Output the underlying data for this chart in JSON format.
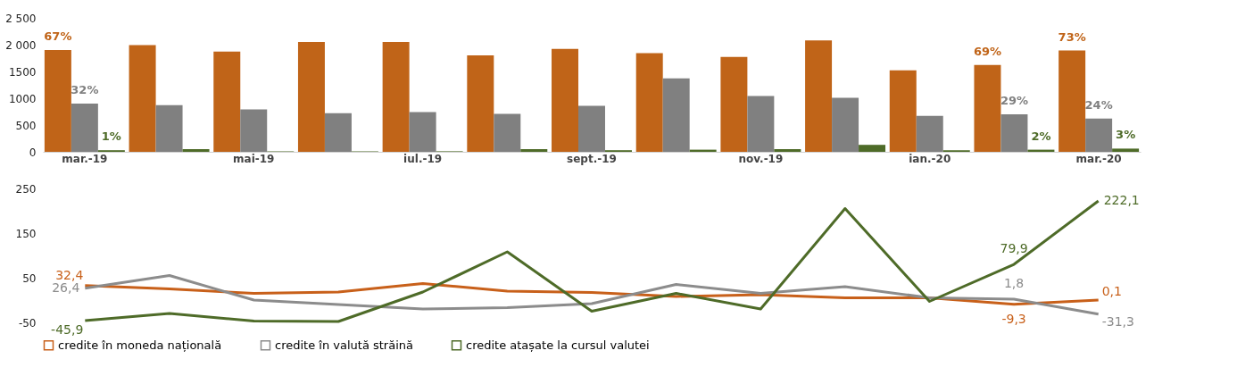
{
  "chart_data": [
    {
      "type": "bar",
      "categories": [
        "mar.-19",
        null,
        "mai-19",
        null,
        "iul.-19",
        null,
        "sept.-19",
        null,
        "nov.-19",
        null,
        "ian.-20",
        null,
        "mar.-20"
      ],
      "series": [
        {
          "color": "#c06418",
          "values": [
            1900,
            1990,
            1870,
            2050,
            2050,
            1800,
            1920,
            1840,
            1770,
            2080,
            1520,
            1620,
            1890
          ]
        },
        {
          "color": "#808080",
          "values": [
            900,
            870,
            790,
            720,
            740,
            710,
            860,
            1370,
            1040,
            1010,
            670,
            700,
            620
          ]
        },
        {
          "color": "#4e6b28",
          "values": [
            30,
            50,
            10,
            10,
            10,
            50,
            30,
            40,
            50,
            130,
            30,
            40,
            60
          ]
        }
      ],
      "annotations": [
        {
          "text": "67%",
          "y": 1900
        },
        {
          "text": "32%",
          "x": "mar.-19",
          "y": 900
        },
        {
          "text": "1%",
          "x": "mar.-19",
          "y": 30
        },
        {
          "text": "69%",
          "y": 1620
        },
        {
          "text": "29%",
          "y": 700
        },
        {
          "text": "2%",
          "y": 40
        },
        {
          "text": "73%",
          "y": 1890
        },
        {
          "text": "24%",
          "x": "mar.-20",
          "y": 620
        },
        {
          "text": "3%",
          "x": "mar.-20",
          "y": 60
        }
      ],
      "ylim": [
        0,
        2500
      ],
      "yticks": [
        0,
        500,
        1000,
        1500,
        {
          "value": 2000,
          "label": "2 000"
        },
        {
          "value": 2500,
          "label": "2 500"
        }
      ],
      "grid": false,
      "legend": false
    },
    {
      "type": "line",
      "categories": [
        null,
        null,
        null,
        null,
        null,
        null,
        null,
        null,
        null,
        null,
        null,
        null,
        null
      ],
      "series": [
        {
          "name": "credite în moneda națională",
          "color": "#c8601a",
          "values": [
            32.4,
            25,
            15,
            18,
            37,
            20,
            17,
            8,
            12,
            5,
            5,
            -9.3,
            0.1
          ],
          "value_labels": [
            "32,4",
            null,
            null,
            null,
            null,
            null,
            null,
            null,
            null,
            null,
            null,
            "-9,3",
            "0,1"
          ]
        },
        {
          "name": "credite în valută străină",
          "color": "#8c8c8c",
          "values": [
            26.4,
            55,
            0,
            -10,
            -20,
            -17,
            -8,
            35,
            15,
            30,
            5,
            1.8,
            -31.3
          ],
          "value_labels": [
            "26,4",
            null,
            null,
            null,
            null,
            null,
            null,
            null,
            null,
            null,
            null,
            "1,8",
            "-31,3"
          ]
        },
        {
          "name": "credite atașate la cursul valutei",
          "color": "#4e6b28",
          "values": [
            -45.9,
            -30,
            -47,
            -48,
            18,
            108,
            -25,
            15,
            -20,
            205,
            -3,
            79.9,
            222.1
          ],
          "value_labels": [
            "-45,9",
            null,
            null,
            null,
            null,
            null,
            null,
            null,
            null,
            null,
            null,
            "79,9",
            "222,1"
          ]
        }
      ],
      "ylim": [
        -50,
        250
      ],
      "yticks": [
        -50,
        50,
        150,
        250
      ],
      "grid": false,
      "legend": "bottom",
      "tick_labels": "y",
      "marker": "none",
      "line_style": "solid"
    }
  ]
}
